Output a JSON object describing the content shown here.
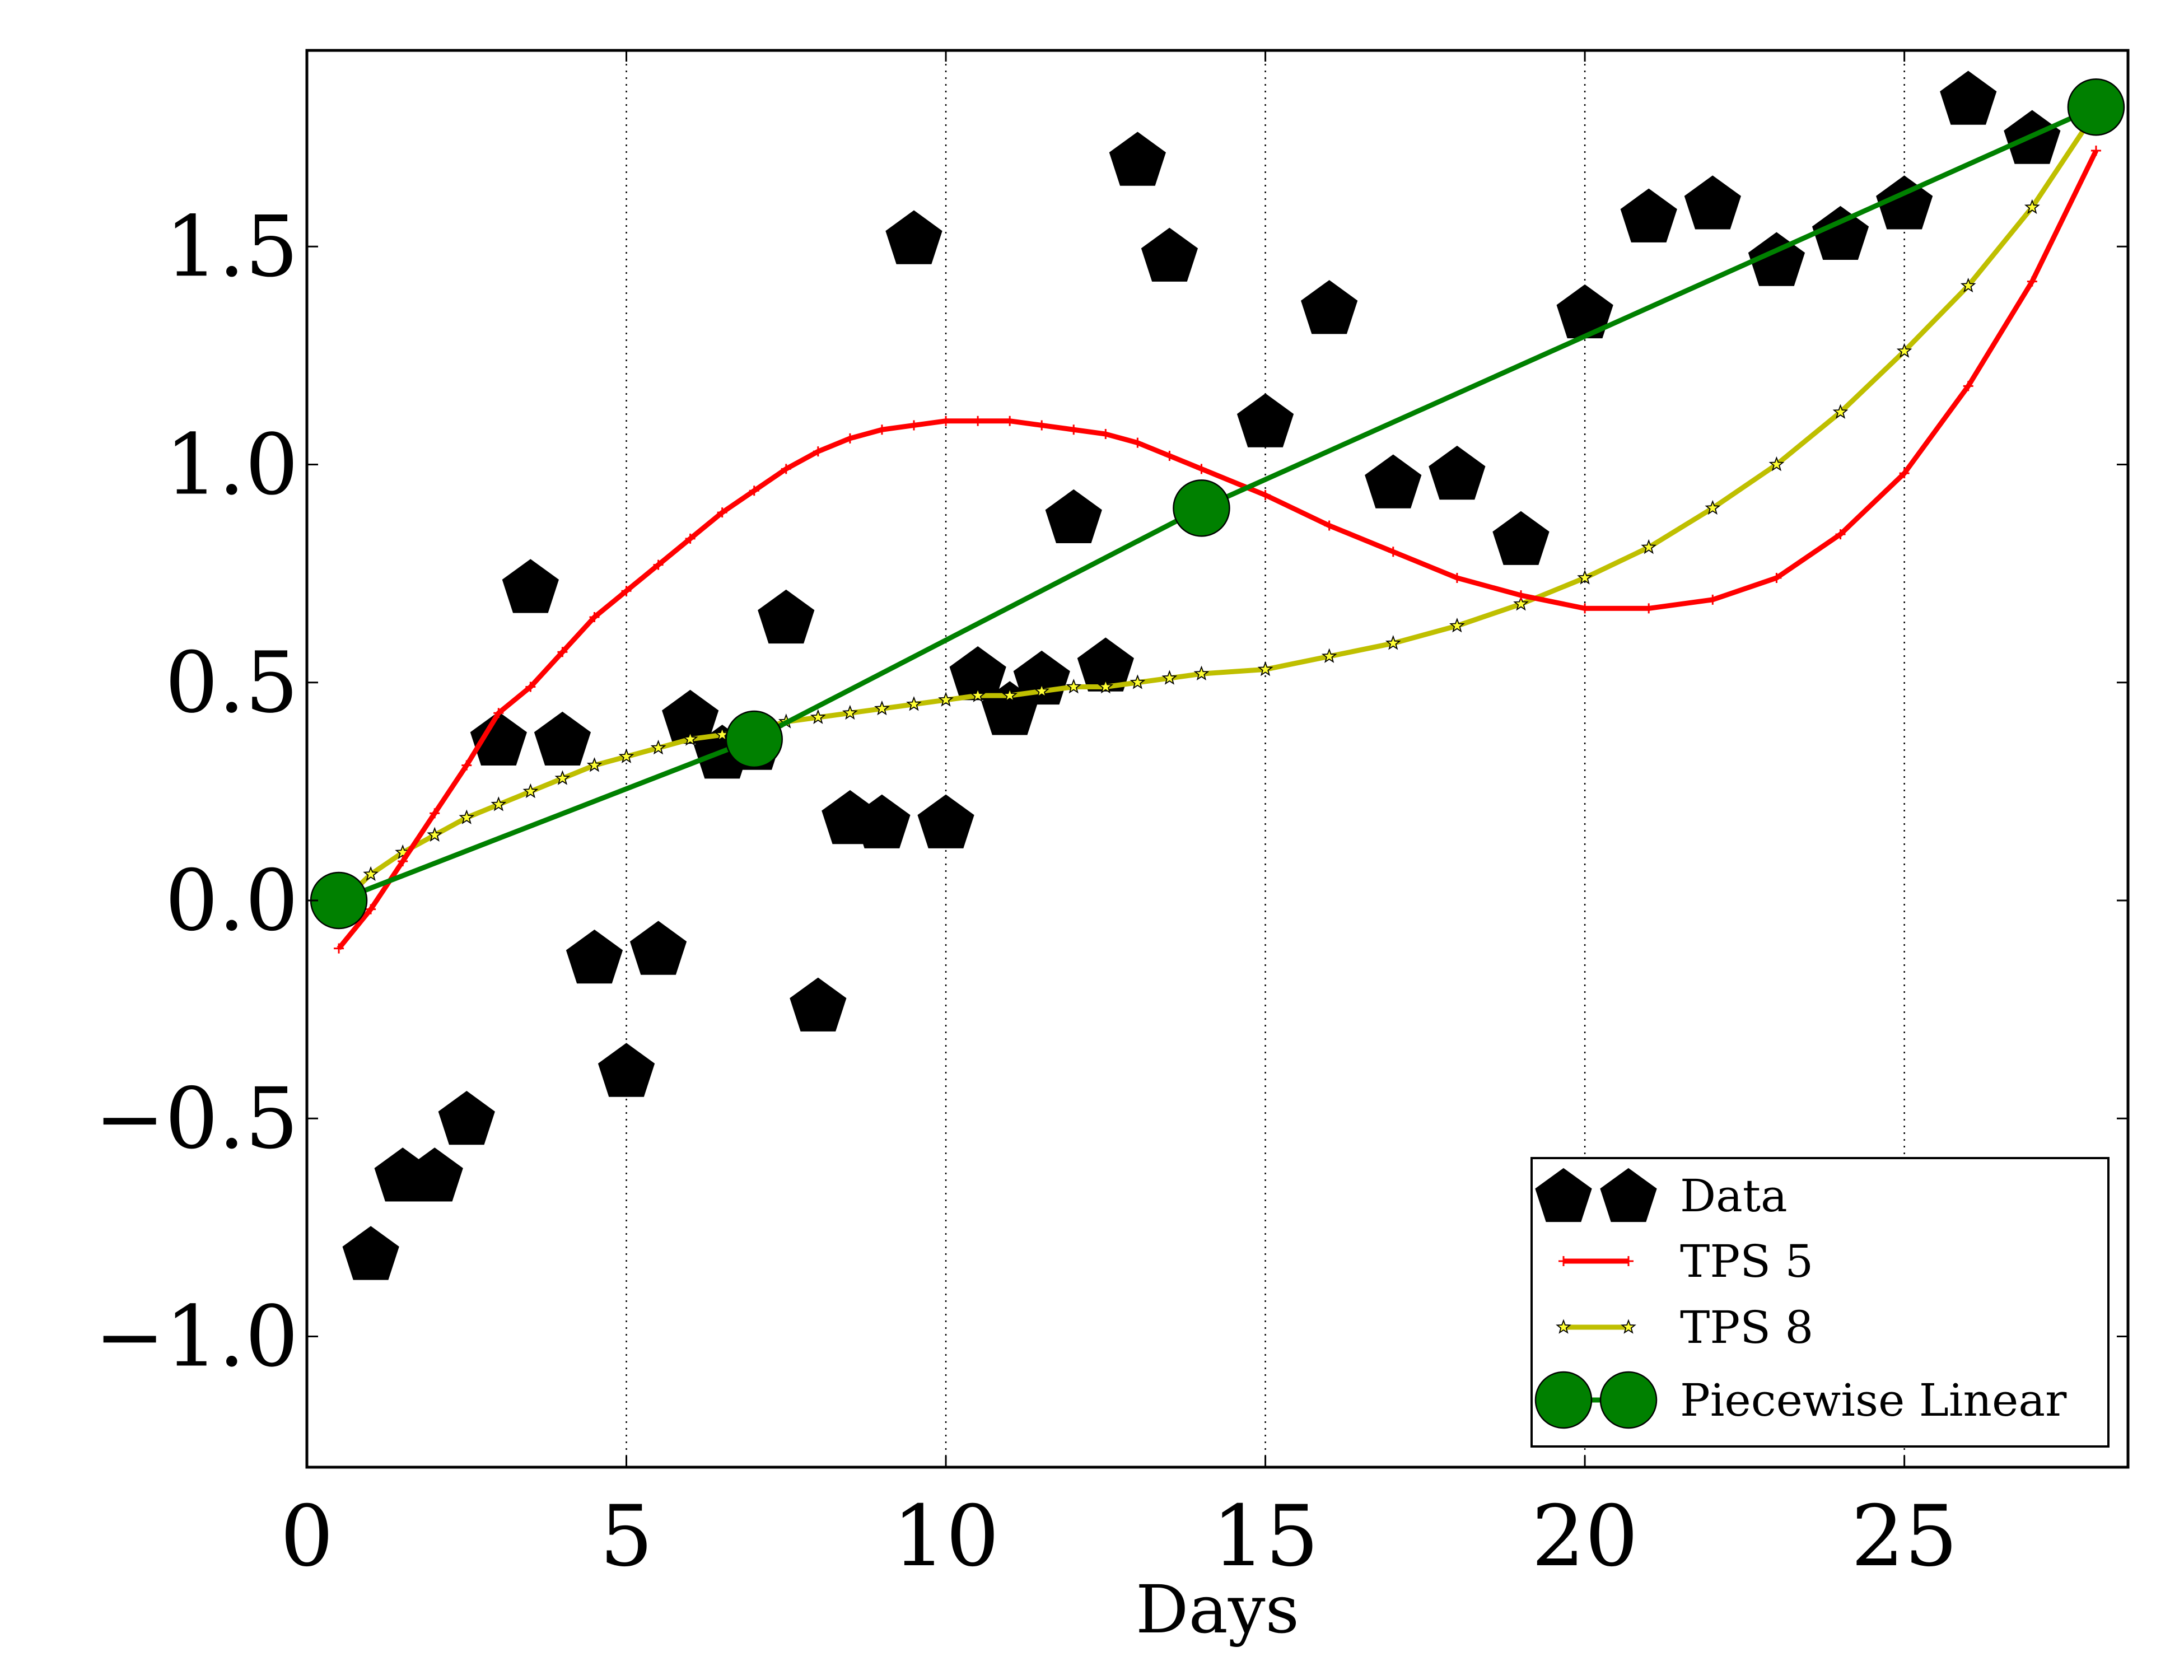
{
  "chart_data": {
    "type": "line",
    "title": "",
    "xlabel": "Days",
    "ylabel": "",
    "xlim": [
      0,
      28.5
    ],
    "ylim": [
      -1.3,
      1.95
    ],
    "x_ticks": [
      0,
      5,
      10,
      15,
      20,
      25
    ],
    "x_tick_labels": [
      "0",
      "5",
      "10",
      "15",
      "20",
      "25"
    ],
    "y_ticks": [
      -1.0,
      -0.5,
      0.0,
      0.5,
      1.0,
      1.5
    ],
    "y_tick_labels": [
      "−1.0",
      "−0.5",
      "0.0",
      "0.5",
      "1.0",
      "1.5"
    ],
    "grid": "vertical dotted at x ticks",
    "legend_position": "lower-right",
    "series": [
      {
        "name": "Data",
        "style": "scatter",
        "marker": "pentagon",
        "color": "#000000",
        "x": [
          1,
          1.5,
          2,
          2.5,
          3,
          3.5,
          4,
          4.5,
          5,
          5.5,
          6,
          6.5,
          7,
          7.5,
          8,
          8.5,
          9,
          9.5,
          10,
          10.5,
          11,
          11.5,
          12,
          12.5,
          13,
          13.5,
          15,
          16,
          17,
          18,
          19,
          20,
          21,
          22,
          23,
          24,
          25,
          26,
          27
        ],
        "y": [
          -0.81,
          -0.63,
          -0.63,
          -0.5,
          0.37,
          0.72,
          0.37,
          -0.13,
          -0.39,
          -0.11,
          0.42,
          0.34,
          0.36,
          0.65,
          -0.24,
          0.19,
          0.18,
          1.52,
          0.18,
          0.52,
          0.44,
          0.51,
          0.88,
          0.54,
          1.7,
          1.48,
          1.1,
          1.36,
          0.96,
          0.98,
          0.83,
          1.35,
          1.57,
          1.6,
          1.47,
          1.53,
          1.6,
          1.84,
          1.75
        ]
      },
      {
        "name": "TPS 5",
        "style": "line",
        "marker": "plus",
        "color": "#ff0000",
        "x": [
          0.5,
          1,
          1.5,
          2,
          2.5,
          3,
          3.5,
          4,
          4.5,
          5,
          5.5,
          6,
          6.5,
          7,
          7.5,
          8,
          8.5,
          9,
          9.5,
          10,
          10.5,
          11,
          11.5,
          12,
          12.5,
          13,
          13.5,
          14,
          15,
          16,
          17,
          18,
          19,
          20,
          21,
          22,
          23,
          24,
          25,
          26,
          27,
          28
        ],
        "y": [
          -0.11,
          -0.02,
          0.09,
          0.2,
          0.31,
          0.43,
          0.49,
          0.57,
          0.65,
          0.71,
          0.77,
          0.83,
          0.89,
          0.94,
          0.99,
          1.03,
          1.06,
          1.08,
          1.09,
          1.1,
          1.1,
          1.1,
          1.09,
          1.08,
          1.07,
          1.05,
          1.02,
          0.99,
          0.93,
          0.86,
          0.8,
          0.74,
          0.7,
          0.67,
          0.67,
          0.69,
          0.74,
          0.84,
          0.98,
          1.18,
          1.42,
          1.72
        ]
      },
      {
        "name": "TPS 8",
        "style": "line",
        "marker": "star",
        "color": "#bfbf00",
        "x": [
          0.5,
          1,
          1.5,
          2,
          2.5,
          3,
          3.5,
          4,
          4.5,
          5,
          5.5,
          6,
          6.5,
          7,
          7.5,
          8,
          8.5,
          9,
          9.5,
          10,
          10.5,
          11,
          11.5,
          12,
          12.5,
          13,
          13.5,
          14,
          15,
          16,
          17,
          18,
          19,
          20,
          21,
          22,
          23,
          24,
          25,
          26,
          27,
          28
        ],
        "y": [
          -0.01,
          0.06,
          0.11,
          0.15,
          0.19,
          0.22,
          0.25,
          0.28,
          0.31,
          0.33,
          0.35,
          0.37,
          0.38,
          0.39,
          0.41,
          0.42,
          0.43,
          0.44,
          0.45,
          0.46,
          0.47,
          0.47,
          0.48,
          0.49,
          0.49,
          0.5,
          0.51,
          0.52,
          0.53,
          0.56,
          0.59,
          0.63,
          0.68,
          0.74,
          0.81,
          0.9,
          1.0,
          1.12,
          1.26,
          1.41,
          1.59,
          1.81
        ]
      },
      {
        "name": "Piecewise Linear",
        "style": "line",
        "marker": "circle",
        "color": "#008000",
        "x": [
          0.5,
          7,
          14,
          28
        ],
        "y": [
          0.0,
          0.37,
          0.9,
          1.82
        ]
      }
    ]
  }
}
